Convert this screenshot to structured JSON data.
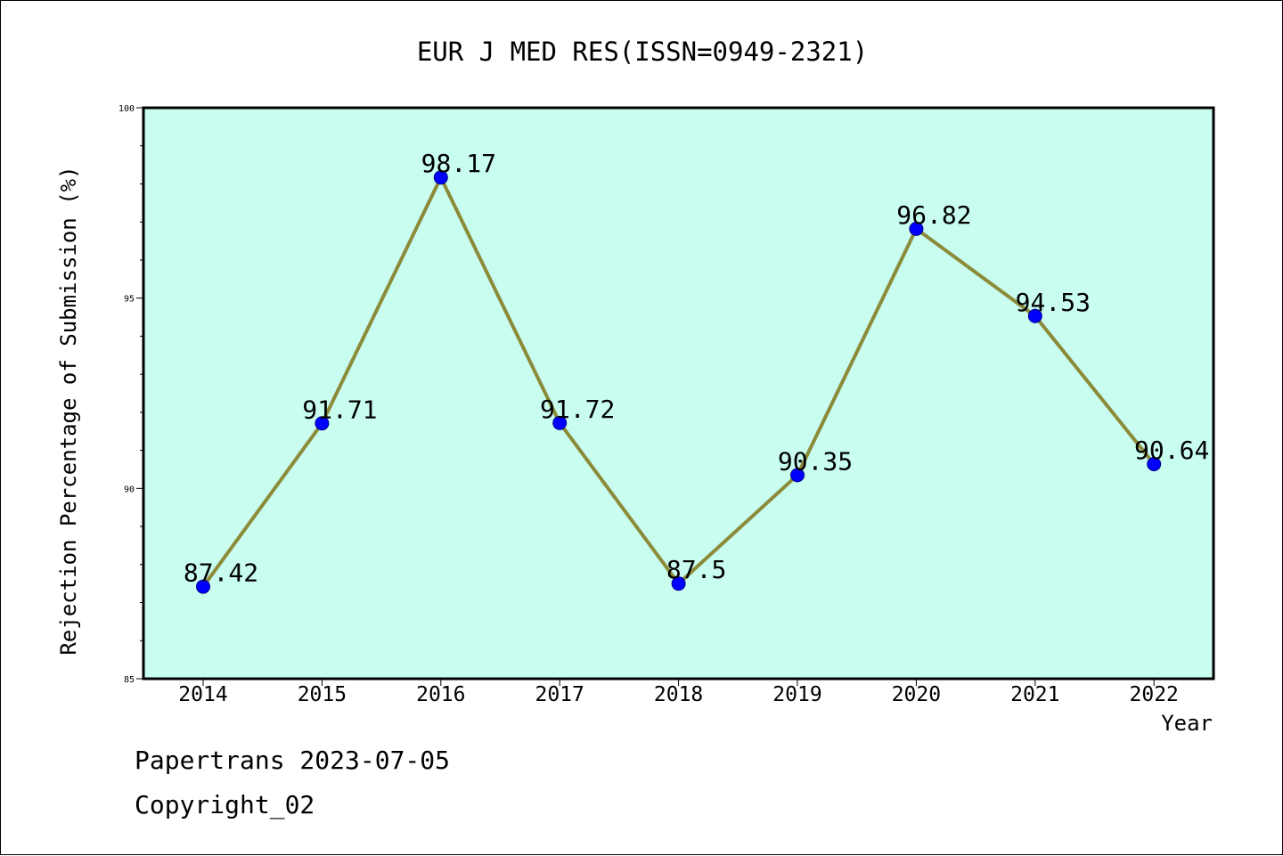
{
  "chart_data": {
    "type": "line",
    "title": "EUR J MED RES(ISSN=0949-2321)",
    "xlabel": "Year",
    "ylabel": "Rejection Percentage of Submission (%)",
    "categories": [
      "2014",
      "2015",
      "2016",
      "2017",
      "2018",
      "2019",
      "2020",
      "2021",
      "2022"
    ],
    "values": [
      87.42,
      91.71,
      98.17,
      91.72,
      87.5,
      90.35,
      96.82,
      94.53,
      90.64
    ],
    "data_labels": [
      "87.42",
      "91.71",
      "98.17",
      "91.72",
      "87.5",
      "90.35",
      "96.82",
      "94.53",
      "90.64"
    ],
    "ylim": [
      85,
      100
    ],
    "yticks": [
      "85",
      "90",
      "95",
      "100"
    ],
    "grid": false,
    "legend": "none",
    "colors": {
      "plot_background": "#c8fdef",
      "line": "#8b8b3a",
      "marker": "#0000ff",
      "marker_edge": "#00008b"
    }
  },
  "footer": {
    "line1": "Papertrans 2023-07-05",
    "line2": "Copyright_02"
  }
}
